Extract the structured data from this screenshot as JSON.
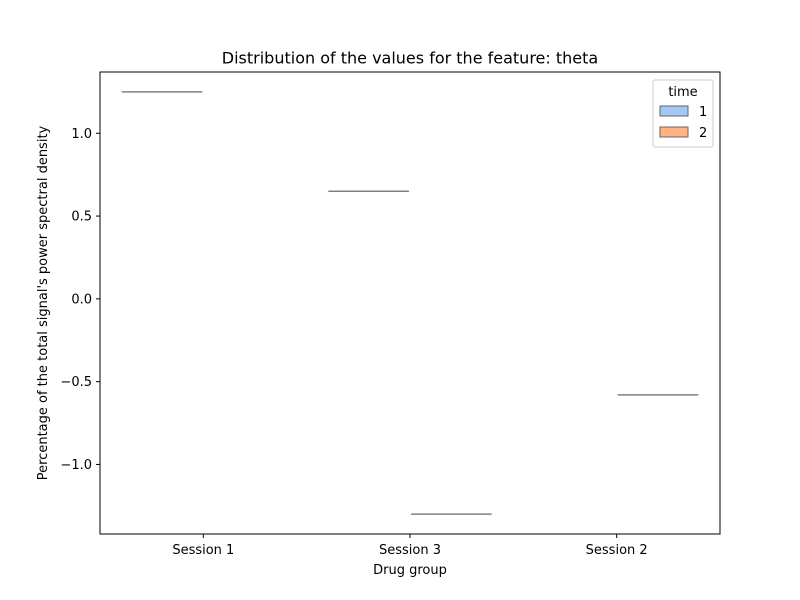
{
  "chart_data": {
    "type": "box",
    "title": "Distribution of the values for the feature: theta",
    "xlabel": "Drug group",
    "ylabel": "Percentage of the total signal's power spectral density",
    "categories": [
      "Session 1",
      "Session 3",
      "Session 2"
    ],
    "ylim": [
      -1.42,
      1.37
    ],
    "yticks": [
      1.0,
      0.5,
      0.0,
      -0.5,
      -1.0
    ],
    "ytick_labels": [
      "1.0",
      "0.5",
      "0.0",
      "−0.5",
      "−1.0"
    ],
    "grid": false,
    "legend": {
      "title": "time",
      "position": "top-right",
      "entries": [
        "1",
        "2"
      ]
    },
    "series": [
      {
        "name": "1",
        "color": "#a1c9f4",
        "values": [
          1.25,
          0.65,
          null
        ]
      },
      {
        "name": "2",
        "color": "#ffb482",
        "values": [
          null,
          -1.3,
          -0.58
        ]
      }
    ],
    "median_line_color": "#808080"
  }
}
